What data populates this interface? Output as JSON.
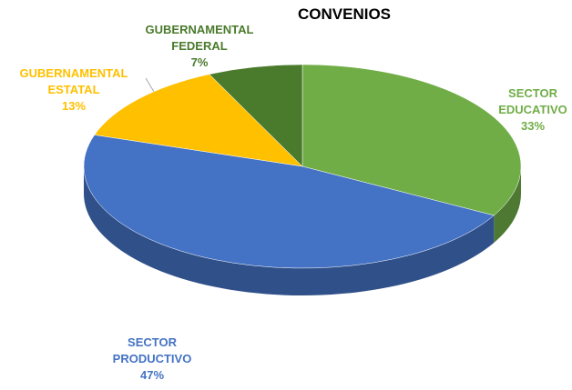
{
  "chart_data": {
    "type": "pie",
    "title": "CONVENIOS",
    "categories": [
      "SECTOR EDUCATIVO",
      "SECTOR PRODUCTIVO",
      "GUBERNAMENTAL ESTATAL",
      "GUBERNAMENTAL FEDERAL"
    ],
    "values": [
      33,
      47,
      13,
      7
    ],
    "value_labels": [
      "33%",
      "47%",
      "13%",
      "7%"
    ],
    "colors": [
      "#70ad47",
      "#4472c4",
      "#ffc000",
      "#4a7a2c"
    ]
  }
}
